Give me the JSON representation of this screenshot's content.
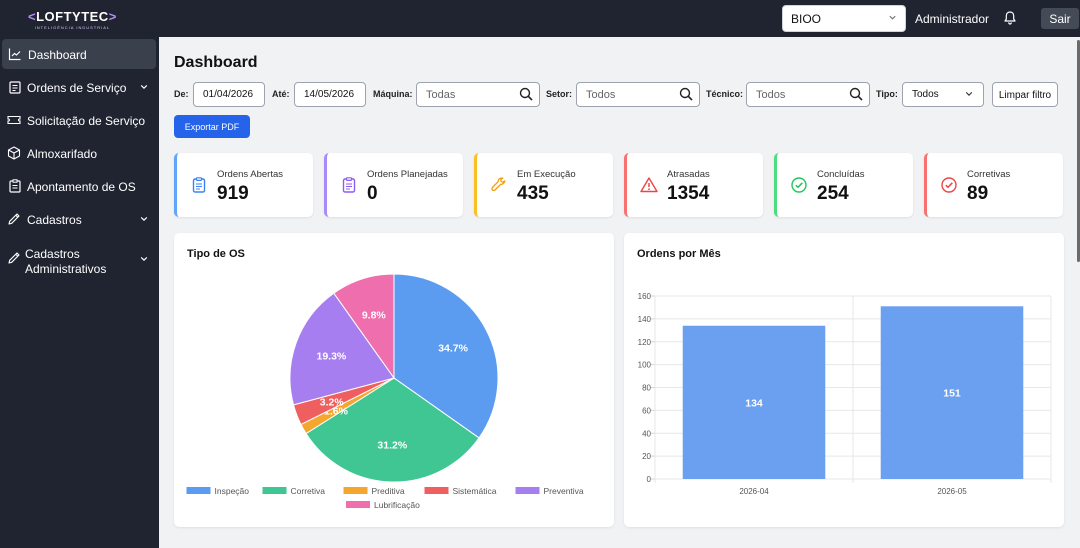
{
  "header": {
    "logo": "LOFTYTEC",
    "logo_open": "<",
    "logo_close": ">",
    "logo_tagline": "INTELIGÊNCIA INDUSTRIAL",
    "unit": "BIOO",
    "user": "Administrador",
    "logout": "Sair"
  },
  "sidebar": {
    "items": [
      {
        "label": "Dashboard",
        "icon": "chart-icon",
        "active": true
      },
      {
        "label": "Ordens de Serviço",
        "icon": "clipboard-icon",
        "expandable": true
      },
      {
        "label": "Solicitação de Serviço",
        "icon": "ticket-icon"
      },
      {
        "label": "Almoxarifado",
        "icon": "box-icon"
      },
      {
        "label": "Apontamento de OS",
        "icon": "clipboard-list-icon"
      },
      {
        "label": "Cadastros",
        "icon": "pencil-icon",
        "expandable": true
      },
      {
        "label": "Cadastros Administrativos",
        "icon": "pencil-icon",
        "expandable": true
      }
    ]
  },
  "page": {
    "title": "Dashboard"
  },
  "filters": {
    "from_label": "De:",
    "from_value": "01/04/2026",
    "to_label": "Até:",
    "to_value": "14/05/2026",
    "machine_label": "Máquina:",
    "machine_placeholder": "Todas",
    "sector_label": "Setor:",
    "sector_placeholder": "Todos",
    "tech_label": "Técnico:",
    "tech_placeholder": "Todos",
    "type_label": "Tipo:",
    "type_value": "Todos",
    "clear": "Limpar filtro",
    "export": "Exportar PDF"
  },
  "cards": [
    {
      "title": "Ordens Abertas",
      "value": "919",
      "color": "#60a5fa",
      "icon": "clipboard-icon"
    },
    {
      "title": "Ordens Planejadas",
      "value": "0",
      "color": "#a78bfa",
      "icon": "clipboard-icon"
    },
    {
      "title": "Em Execução",
      "value": "435",
      "color": "#fbbf24",
      "icon": "wrench-icon"
    },
    {
      "title": "Atrasadas",
      "value": "1354",
      "color": "#f87171",
      "icon": "warning-icon"
    },
    {
      "title": "Concluídas",
      "value": "254",
      "color": "#4ade80",
      "icon": "check-circle-icon"
    },
    {
      "title": "Corretivas",
      "value": "89",
      "color": "#f87171",
      "icon": "check-circle-icon"
    }
  ],
  "charts": {
    "pie_title": "Tipo de OS",
    "bar_title": "Ordens por Mês"
  },
  "chart_data": [
    {
      "type": "pie",
      "title": "Tipo de OS",
      "categories": [
        "Inspeção",
        "Corretiva",
        "Preditiva",
        "Sistemática",
        "Preventiva",
        "Lubrificação"
      ],
      "values": [
        34.7,
        31.2,
        1.6,
        3.2,
        19.3,
        9.8
      ],
      "labels": [
        "34.7%",
        "31.2%",
        "1.6%",
        "3.2%",
        "19.3%",
        "9.8%"
      ],
      "colors": [
        "#5b9cf0",
        "#3fc692",
        "#f5a62e",
        "#ef5f5f",
        "#a77ef0",
        "#ef6fae"
      ],
      "legend": "bottom"
    },
    {
      "type": "bar",
      "title": "Ordens por Mês",
      "categories": [
        "2026-04",
        "2026-05"
      ],
      "values": [
        134,
        151
      ],
      "ylim": [
        0,
        160
      ],
      "yticks": [
        0,
        20,
        40,
        60,
        80,
        100,
        120,
        140,
        160
      ],
      "color": "#6b9ff0",
      "grid": true
    }
  ]
}
